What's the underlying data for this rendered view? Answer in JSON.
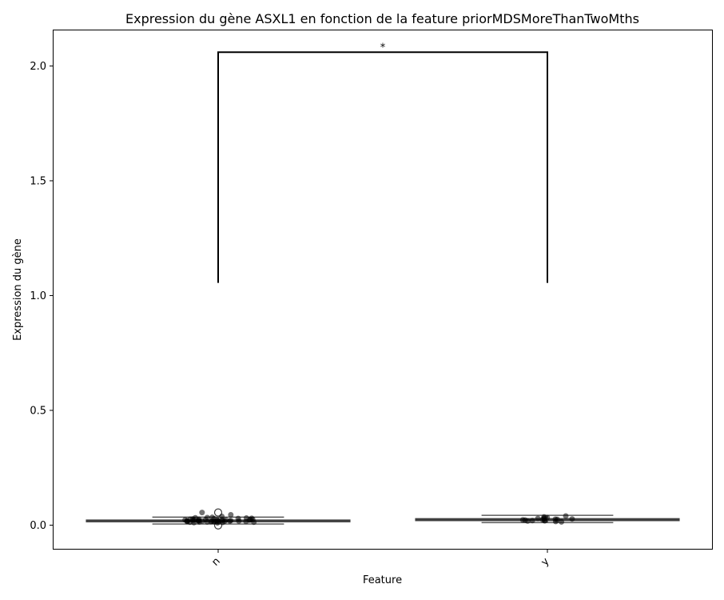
{
  "chart_data": {
    "type": "box",
    "title": "Expression du gène ASXL1 en fonction de la feature priorMDSMoreThanTwoMths",
    "xlabel": "Feature",
    "ylabel": "Expression du gène",
    "categories": [
      "n",
      "y"
    ],
    "ylim": [
      -0.103,
      2.155
    ],
    "yticks": [
      0.0,
      0.5,
      1.0,
      1.5,
      2.0
    ],
    "ytick_labels": [
      "0.0",
      "0.5",
      "1.0",
      "1.5",
      "2.0"
    ],
    "grid": false,
    "box_color": "#4c72b0",
    "boxes": [
      {
        "category": "n",
        "min": 0.005,
        "q1": 0.015,
        "median": 0.018,
        "q3": 0.022,
        "max": 0.035,
        "outliers": [
          0.055,
          -0.001
        ]
      },
      {
        "category": "y",
        "min": 0.011,
        "q1": 0.02,
        "median": 0.024,
        "q3": 0.028,
        "max": 0.043,
        "outliers": []
      }
    ],
    "points": [
      {
        "category": "n",
        "values": [
          0.01,
          0.012,
          0.013,
          0.014,
          0.015,
          0.015,
          0.016,
          0.016,
          0.017,
          0.017,
          0.018,
          0.018,
          0.018,
          0.019,
          0.019,
          0.02,
          0.02,
          0.021,
          0.021,
          0.022,
          0.022,
          0.023,
          0.024,
          0.025,
          0.026,
          0.028,
          0.03,
          0.032,
          0.034,
          0.038,
          0.045,
          0.055,
          0.011,
          0.013,
          0.016,
          0.019,
          0.021,
          0.024,
          0.027,
          0.029,
          0.033,
          0.014,
          0.018,
          0.022,
          0.026,
          0.031,
          0.017,
          0.02,
          0.023,
          0.015
        ]
      },
      {
        "category": "y",
        "values": [
          0.014,
          0.016,
          0.018,
          0.02,
          0.021,
          0.022,
          0.023,
          0.024,
          0.025,
          0.026,
          0.027,
          0.029,
          0.031,
          0.033,
          0.036,
          0.04,
          0.019,
          0.028
        ]
      }
    ],
    "significance": {
      "label": "*",
      "from": "n",
      "to": "y",
      "bottom": 1.055,
      "top": 2.06
    }
  }
}
